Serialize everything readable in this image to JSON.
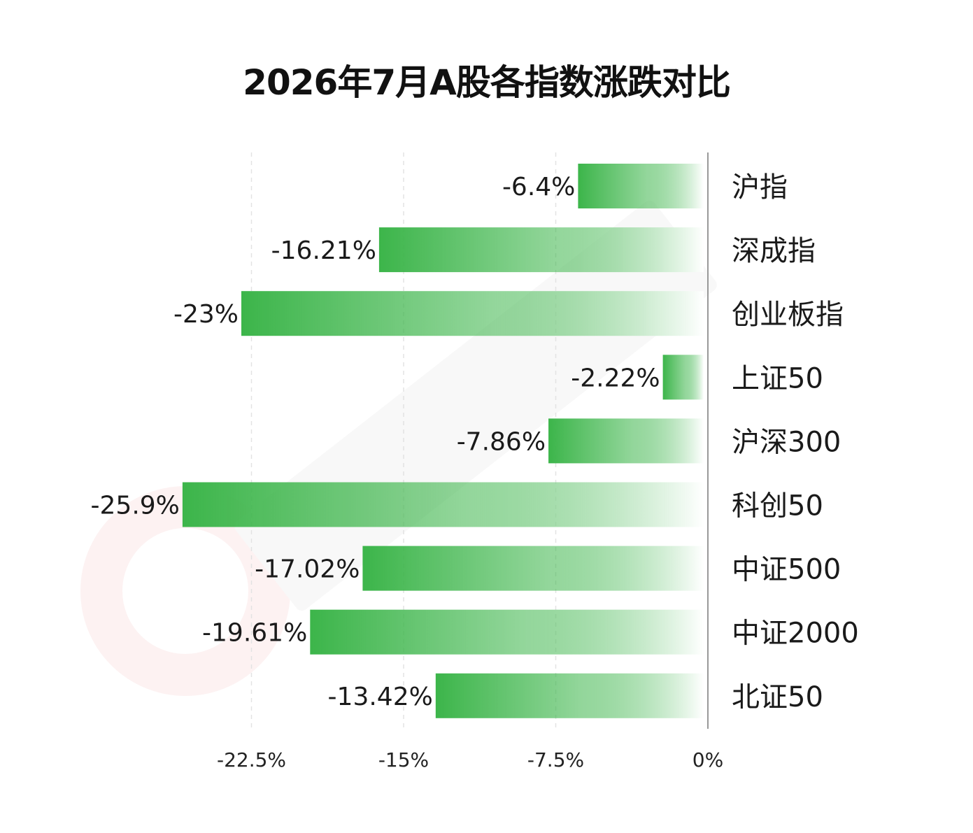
{
  "chart_data": {
    "type": "bar",
    "orientation": "horizontal",
    "title": "2026年7月A股各指数涨跌对比",
    "categories": [
      "沪指",
      "深成指",
      "创业板指",
      "上证50",
      "沪深300",
      "科创50",
      "中证500",
      "中证2000",
      "北证50"
    ],
    "values": [
      -6.4,
      -16.21,
      -23,
      -2.22,
      -7.86,
      -25.9,
      -17.02,
      -19.61,
      -13.42
    ],
    "data_labels": [
      "-6.4%",
      "-16.21%",
      "-23%",
      "-2.22%",
      "-7.86%",
      "-25.9%",
      "-17.02%",
      "-19.61%",
      "-13.42%"
    ],
    "x_ticks": [
      -22.5,
      -15,
      -7.5,
      0
    ],
    "x_tick_labels": [
      "-22.5%",
      "-15%",
      "-7.5%",
      "0%"
    ],
    "xlim": [
      -27.5,
      0
    ],
    "grid": "vertical dashed",
    "category_axis": "right",
    "bar_color": "#3cb54a",
    "bar_fade_color": "#ffffff"
  }
}
